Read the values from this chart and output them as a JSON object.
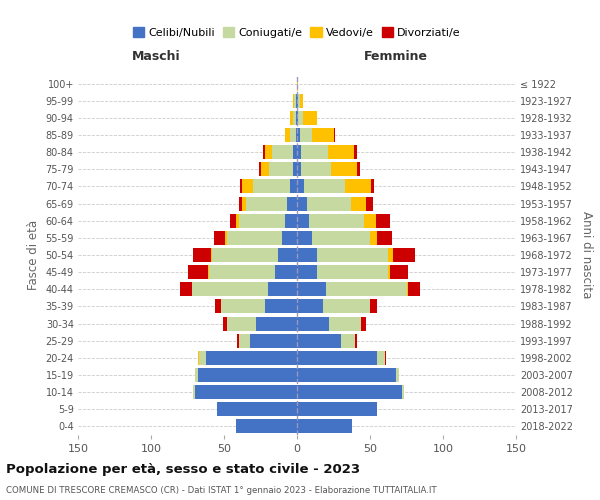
{
  "age_groups": [
    "0-4",
    "5-9",
    "10-14",
    "15-19",
    "20-24",
    "25-29",
    "30-34",
    "35-39",
    "40-44",
    "45-49",
    "50-54",
    "55-59",
    "60-64",
    "65-69",
    "70-74",
    "75-79",
    "80-84",
    "85-89",
    "90-94",
    "95-99",
    "100+"
  ],
  "birth_years": [
    "2018-2022",
    "2013-2017",
    "2008-2012",
    "2003-2007",
    "1998-2002",
    "1993-1997",
    "1988-1992",
    "1983-1987",
    "1978-1982",
    "1973-1977",
    "1968-1972",
    "1963-1967",
    "1958-1962",
    "1953-1957",
    "1948-1952",
    "1943-1947",
    "1938-1942",
    "1933-1937",
    "1928-1932",
    "1923-1927",
    "≤ 1922"
  ],
  "male_celibi": [
    42,
    55,
    70,
    68,
    62,
    32,
    28,
    22,
    20,
    15,
    13,
    10,
    8,
    7,
    5,
    3,
    3,
    1,
    1,
    1,
    0
  ],
  "male_coniugati": [
    0,
    0,
    1,
    2,
    5,
    8,
    20,
    30,
    52,
    45,
    45,
    38,
    32,
    28,
    25,
    16,
    14,
    4,
    2,
    1,
    0
  ],
  "male_vedovi": [
    0,
    0,
    0,
    0,
    1,
    0,
    0,
    0,
    0,
    1,
    1,
    1,
    2,
    3,
    8,
    6,
    5,
    3,
    2,
    1,
    0
  ],
  "male_divorziati": [
    0,
    0,
    0,
    0,
    0,
    1,
    3,
    4,
    8,
    14,
    12,
    8,
    4,
    2,
    1,
    1,
    1,
    0,
    0,
    0,
    0
  ],
  "female_celibi": [
    38,
    55,
    72,
    68,
    55,
    30,
    22,
    18,
    20,
    14,
    14,
    10,
    8,
    7,
    5,
    3,
    3,
    2,
    1,
    1,
    0
  ],
  "female_coniugati": [
    0,
    0,
    1,
    2,
    5,
    10,
    22,
    32,
    55,
    48,
    48,
    40,
    38,
    30,
    28,
    20,
    18,
    8,
    3,
    1,
    0
  ],
  "female_vedovi": [
    0,
    0,
    0,
    0,
    0,
    0,
    0,
    0,
    1,
    2,
    4,
    5,
    8,
    10,
    18,
    18,
    18,
    15,
    10,
    2,
    1
  ],
  "female_divorziati": [
    0,
    0,
    0,
    0,
    1,
    1,
    3,
    5,
    8,
    12,
    15,
    10,
    10,
    5,
    2,
    2,
    2,
    1,
    0,
    0,
    0
  ],
  "colors": {
    "celibi": "#4472c4",
    "coniugati": "#c6d9a0",
    "vedovi": "#ffc000",
    "divorziati": "#cc0000"
  },
  "xlim": 150,
  "title_main": "Popolazione per età, sesso e stato civile - 2023",
  "title_sub": "COMUNE DI TRESCORE CREMASCO (CR) - Dati ISTAT 1° gennaio 2023 - Elaborazione TUTTAITALIA.IT",
  "ylabel_left": "Fasce di età",
  "ylabel_right": "Anni di nascita",
  "xlabel_left": "Maschi",
  "xlabel_right": "Femmine",
  "bg_color": "#ffffff",
  "grid_color": "#cccccc"
}
